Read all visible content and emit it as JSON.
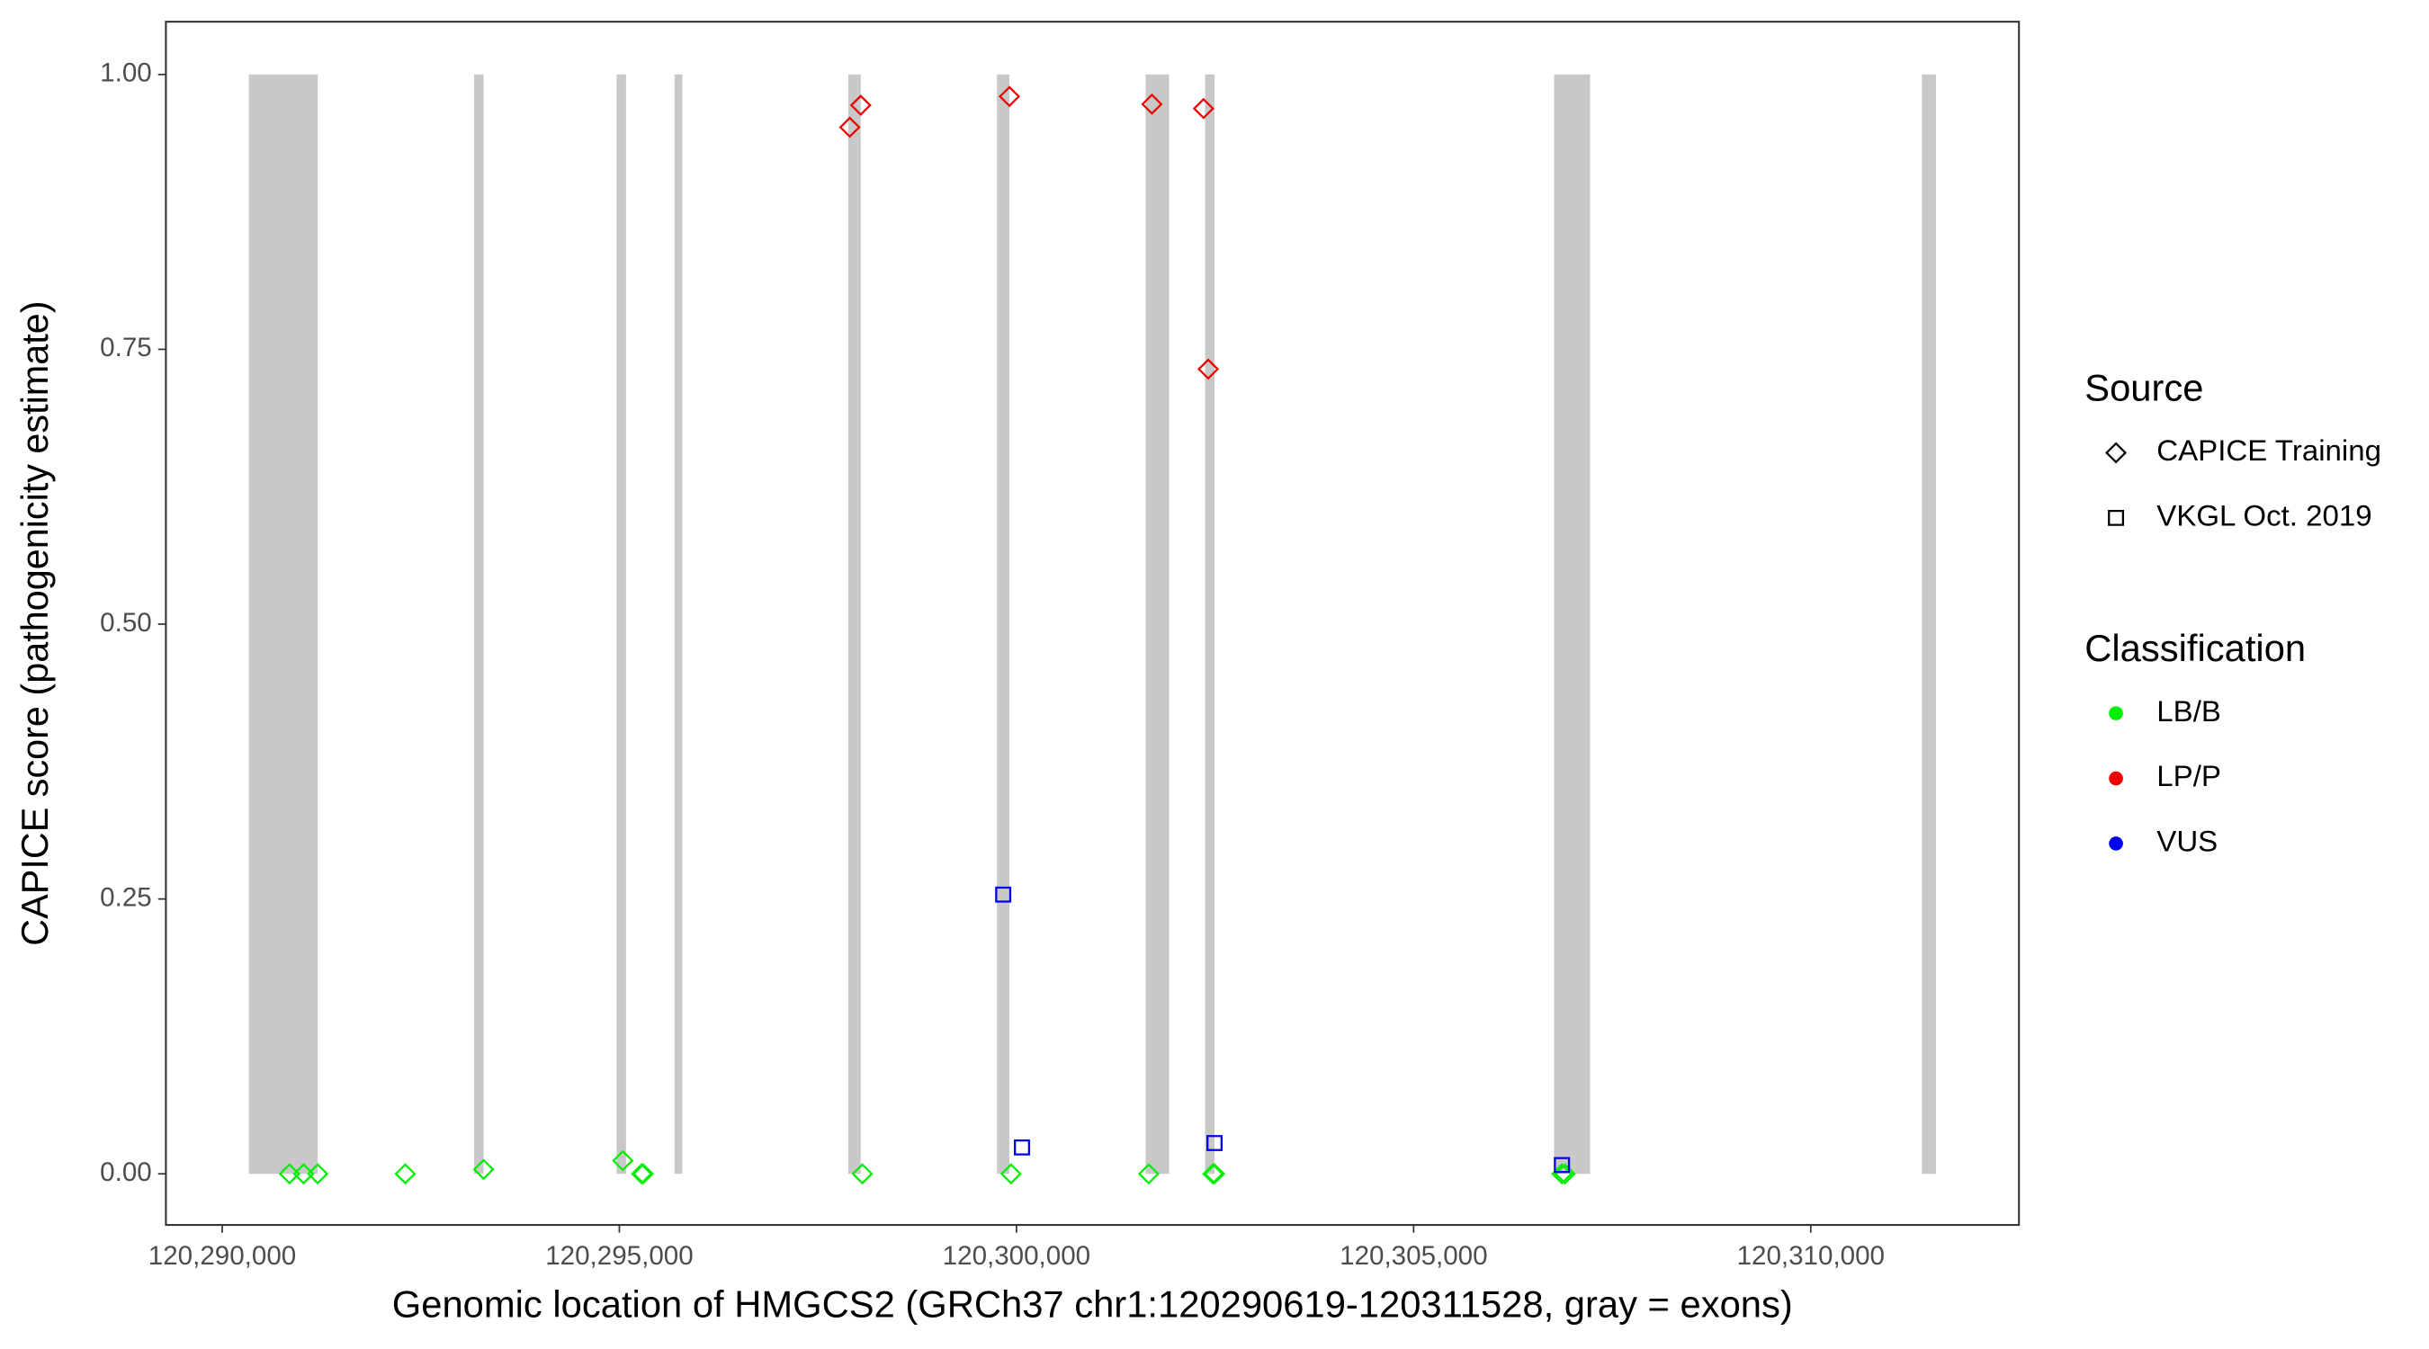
{
  "chart_data": {
    "type": "scatter",
    "x_label": "Genomic location of HMGCS2 (GRCh37 chr1:120290619-120311528, gray = exons)",
    "y_label": "CAPICE score (pathogenicity estimate)",
    "xlim": [
      120289291,
      120312621
    ],
    "ylim": [
      -0.0465,
      1.048
    ],
    "xticks": [
      {
        "value": 120290000,
        "label": "120,290,000"
      },
      {
        "value": 120295000,
        "label": "120,295,000"
      },
      {
        "value": 120300000,
        "label": "120,300,000"
      },
      {
        "value": 120305000,
        "label": "120,305,000"
      },
      {
        "value": 120310000,
        "label": "120,310,000"
      }
    ],
    "yticks": [
      {
        "value": 0,
        "label": "0.00"
      },
      {
        "value": 0.25,
        "label": "0.25"
      },
      {
        "value": 0.5,
        "label": "0.50"
      },
      {
        "value": 0.75,
        "label": "0.75"
      },
      {
        "value": 1,
        "label": "1.00"
      }
    ],
    "grid": false,
    "exon_color": "#c8c8c8",
    "exons": [
      [
        120290335,
        120291202
      ],
      [
        120293172,
        120293291
      ],
      [
        120294966,
        120295084
      ],
      [
        120295695,
        120295793
      ],
      [
        120297882,
        120298039
      ],
      [
        120299754,
        120299911
      ],
      [
        120301626,
        120301921
      ],
      [
        120302374,
        120302493
      ],
      [
        120306768,
        120307222
      ],
      [
        120311399,
        120311576
      ]
    ],
    "legend": {
      "source": {
        "title": "Source",
        "items": [
          {
            "name": "CAPICE Training",
            "shape": "diamond"
          },
          {
            "name": "VKGL Oct. 2019",
            "shape": "square"
          }
        ]
      },
      "classification": {
        "title": "Classification",
        "items": [
          {
            "name": "LB/B",
            "color": "#00ee00"
          },
          {
            "name": "LP/P",
            "color": "#ee0000"
          },
          {
            "name": "VUS",
            "color": "#0000ee"
          }
        ]
      }
    },
    "series": [
      {
        "source": "CAPICE Training",
        "classification": "LB/B",
        "x": [
          120290847,
          120291025,
          120291202,
          120292305,
          120293291,
          120295044,
          120295281,
          120295300,
          120298059,
          120299931,
          120301665,
          120302473,
          120302493,
          120306867,
          120306906
        ],
        "values": [
          0,
          0,
          0,
          0,
          0.004,
          0.012,
          0,
          0,
          0,
          0,
          0,
          0,
          0,
          0,
          0
        ]
      },
      {
        "source": "CAPICE Training",
        "classification": "LP/P",
        "x": [
          120297901,
          120298039,
          120299911,
          120301705,
          120302355,
          120302414
        ],
        "values": [
          0.952,
          0.972,
          0.98,
          0.973,
          0.969,
          0.732
        ]
      },
      {
        "source": "VKGL Oct. 2019",
        "classification": "VUS",
        "x": [
          120299833,
          120300069,
          120302493,
          120306867
        ],
        "values": [
          0.254,
          0.024,
          0.028,
          0.008
        ]
      }
    ]
  }
}
